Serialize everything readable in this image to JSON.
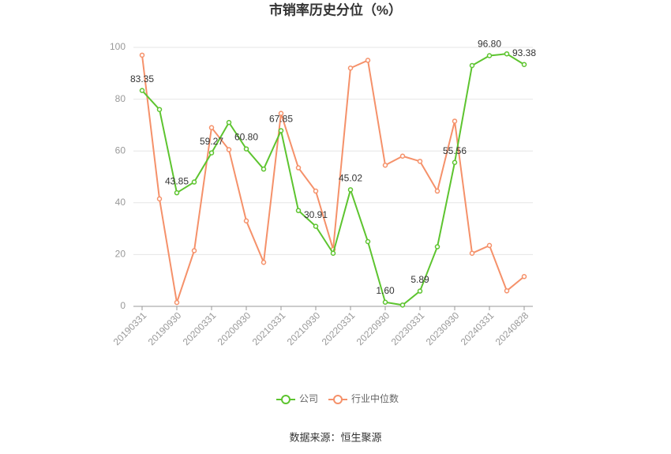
{
  "chart_data": {
    "type": "line",
    "title": "市销率历史分位（%）",
    "categories": [
      "20190331",
      null,
      "20190930",
      null,
      "20200331",
      null,
      "20200930",
      null,
      "20210331",
      null,
      "20210930",
      null,
      "20220331",
      null,
      "20220930",
      null,
      "20230331",
      null,
      "20230930",
      null,
      "20240331",
      null,
      "20240828"
    ],
    "series": [
      {
        "name": "公司",
        "color": "#5dc42f",
        "values": [
          83.35,
          76,
          43.85,
          48,
          59.27,
          71,
          60.8,
          53,
          67.85,
          37,
          30.91,
          20.5,
          45.02,
          25,
          1.6,
          0.5,
          5.89,
          23,
          55.56,
          93,
          96.8,
          97.5,
          93.38
        ],
        "value_labels": [
          "83.35",
          null,
          "43.85",
          null,
          "59.27",
          null,
          "60.80",
          null,
          "67.85",
          null,
          "30.91",
          null,
          "45.02",
          null,
          "1.60",
          null,
          "5.89",
          null,
          "55.56",
          null,
          "96.80",
          null,
          "93.38"
        ]
      },
      {
        "name": "行业中位数",
        "color": "#f5916a",
        "values": [
          97,
          41.5,
          1.5,
          21.5,
          69,
          60.5,
          33,
          17,
          74.5,
          53.5,
          44.5,
          22,
          92,
          95,
          54.5,
          58,
          56,
          44.5,
          71.5,
          20.5,
          23.5,
          6,
          11.5
        ]
      }
    ],
    "ylim": [
      0,
      100
    ],
    "yticks": [
      0,
      20,
      40,
      60,
      80,
      100
    ],
    "grid": true,
    "source": "数据来源：恒生聚源"
  }
}
